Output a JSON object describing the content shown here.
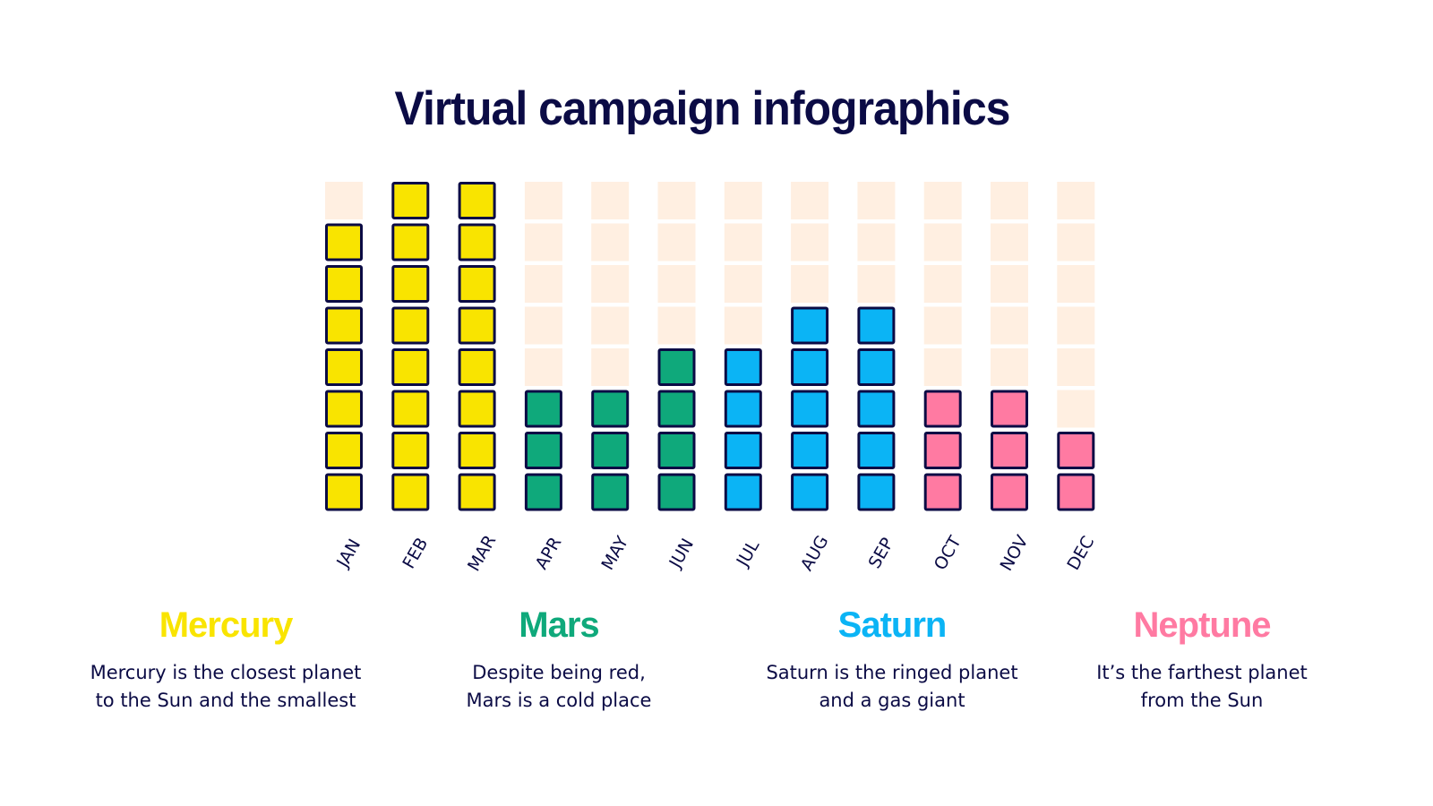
{
  "title": "Virtual campaign infographics",
  "chart_data": {
    "type": "bar",
    "style": "stacked unit squares (pictograph)",
    "max_units": 8,
    "empty_color": "#FFEFE1",
    "outline_color": "#0B0B45",
    "categories": [
      "JAN",
      "FEB",
      "MAR",
      "APR",
      "MAY",
      "JUN",
      "JUL",
      "AUG",
      "SEP",
      "OCT",
      "NOV",
      "DEC"
    ],
    "values": [
      7,
      8,
      8,
      3,
      3,
      4,
      4,
      5,
      5,
      3,
      3,
      2
    ],
    "series": [
      {
        "name": "Mercury",
        "color": "#F9E400",
        "categories": [
          "JAN",
          "FEB",
          "MAR"
        ]
      },
      {
        "name": "Mars",
        "color": "#0FA97B",
        "categories": [
          "APR",
          "MAY",
          "JUN"
        ]
      },
      {
        "name": "Saturn",
        "color": "#0BB4F5",
        "categories": [
          "JUL",
          "AUG",
          "SEP"
        ]
      },
      {
        "name": "Neptune",
        "color": "#FF7AA2",
        "categories": [
          "OCT",
          "NOV",
          "DEC"
        ]
      }
    ],
    "grid": false,
    "legend": "bottom"
  },
  "legend": [
    {
      "name": "Mercury",
      "color": "#F9E400",
      "line1": "Mercury is the closest planet",
      "line2": "to the Sun and the smallest"
    },
    {
      "name": "Mars",
      "color": "#0FA97B",
      "line1": "Despite being red,",
      "line2": "Mars is a cold place"
    },
    {
      "name": "Saturn",
      "color": "#0BB4F5",
      "line1": "Saturn is the ringed planet",
      "line2": "and a gas giant"
    },
    {
      "name": "Neptune",
      "color": "#FF7AA2",
      "line1": "It’s the farthest planet",
      "line2": "from the Sun"
    }
  ]
}
